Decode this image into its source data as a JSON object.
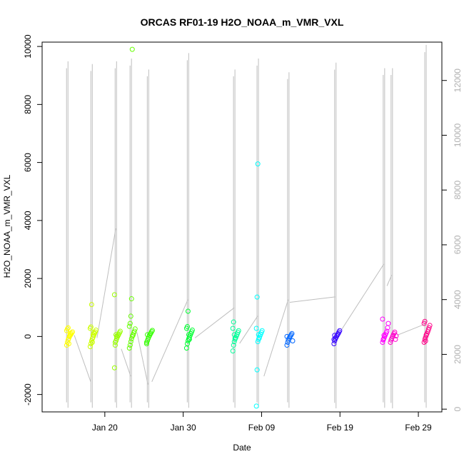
{
  "chart_data": {
    "type": "scatter",
    "title": "ORCAS RF01-19 H2O_NOAA_m_VMR_VXL",
    "xlabel": "Date",
    "ylabel": "H2O_NOAA_m_VMR_VXL",
    "x_range": [
      "2016-01-12",
      "2016-03-03"
    ],
    "ylim": [
      -2600,
      10150
    ],
    "y2lim": [
      -100,
      13400
    ],
    "x_ticks": [
      {
        "date": "2016-01-20",
        "label": "Jan 20"
      },
      {
        "date": "2016-01-30",
        "label": "Jan 30"
      },
      {
        "date": "2016-02-09",
        "label": "Feb 09"
      },
      {
        "date": "2016-02-19",
        "label": "Feb 19"
      },
      {
        "date": "2016-02-29",
        "label": "Feb 29"
      }
    ],
    "y_ticks": [
      -2000,
      0,
      2000,
      4000,
      6000,
      8000,
      10000
    ],
    "y2_ticks": [
      0,
      2000,
      4000,
      6000,
      8000,
      10000,
      12000
    ],
    "gray_series": {
      "color": "#bebebe",
      "spikes": [
        {
          "date": "2016-01-15.3",
          "hi": 12700,
          "lo": 50
        },
        {
          "date": "2016-01-18.4",
          "hi": 12600,
          "lo": 50
        },
        {
          "date": "2016-01-21.5",
          "hi": 12700,
          "lo": 50
        },
        {
          "date": "2016-01-23.4",
          "hi": 12800,
          "lo": 50
        },
        {
          "date": "2016-01-25.6",
          "hi": 12400,
          "lo": 50
        },
        {
          "date": "2016-01-30.7",
          "hi": 13000,
          "lo": 50
        },
        {
          "date": "2016-02-05.6",
          "hi": 12400,
          "lo": 50
        },
        {
          "date": "2016-02-08.6",
          "hi": 12800,
          "lo": 50
        },
        {
          "date": "2016-02-12.5",
          "hi": 12300,
          "lo": 50
        },
        {
          "date": "2016-02-18.5",
          "hi": 12650,
          "lo": 30
        },
        {
          "date": "2016-02-24.7",
          "hi": 12450,
          "lo": 50
        },
        {
          "date": "2016-02-25.7",
          "hi": 12450,
          "lo": 30
        },
        {
          "date": "2016-03-01.0",
          "hi": 13300,
          "lo": 50
        }
      ],
      "connectors": [
        [
          [
            "2016-01-16.1",
            2700
          ],
          [
            "2016-01-18.2",
            1000
          ]
        ],
        [
          [
            "2016-01-19.0",
            2600
          ],
          [
            "2016-01-21.4",
            6600
          ]
        ],
        [
          [
            "2016-01-22.1",
            2200
          ],
          [
            "2016-01-23.3",
            1200
          ]
        ],
        [
          [
            "2016-01-24.1",
            2800
          ],
          [
            "2016-01-25.5",
            900
          ]
        ],
        [
          [
            "2016-01-26.0",
            1000
          ],
          [
            "2016-01-30.6",
            4000
          ]
        ],
        [
          [
            "2016-01-31.5",
            2600
          ],
          [
            "2016-02-05.5",
            3700
          ]
        ],
        [
          [
            "2016-02-06.2",
            2400
          ],
          [
            "2016-02-08.5",
            3400
          ]
        ],
        [
          [
            "2016-02-09.3",
            1200
          ],
          [
            "2016-02-12.4",
            4000
          ]
        ],
        [
          [
            "2016-02-12.6",
            3900
          ],
          [
            "2016-02-18.4",
            4100
          ]
        ],
        [
          [
            "2016-02-19.2",
            2900
          ],
          [
            "2016-02-24.6",
            5300
          ]
        ],
        [
          [
            "2016-02-25.0",
            4500
          ],
          [
            "2016-02-25.6",
            4900
          ]
        ],
        [
          [
            "2016-02-26.3",
            2700
          ],
          [
            "2016-02-29.8",
            3100
          ]
        ]
      ]
    },
    "series": [
      {
        "date": "2016-01-15.5",
        "color": "#ffff00",
        "values": [
          -300,
          -200,
          -120,
          -60,
          0,
          40,
          80,
          120,
          160,
          200,
          260,
          300,
          -250,
          20,
          100
        ]
      },
      {
        "date": "2016-01-18.5",
        "color": "#ccff00",
        "values": [
          -350,
          -250,
          -150,
          -80,
          -20,
          40,
          100,
          160,
          220,
          280,
          330,
          1100,
          -200,
          60,
          140
        ]
      },
      {
        "date": "2016-01-21.6",
        "color": "#99ff00",
        "values": [
          -1080,
          -300,
          -150,
          -80,
          -20,
          30,
          80,
          130,
          180,
          1440,
          -200,
          60,
          10
        ]
      },
      {
        "date": "2016-01-23.5",
        "color": "#66ff00",
        "values": [
          -400,
          -300,
          -180,
          -80,
          0,
          60,
          120,
          180,
          260,
          350,
          450,
          700,
          1300,
          9900,
          40
        ]
      },
      {
        "date": "2016-01-25.7",
        "color": "#33ff00",
        "values": [
          -250,
          -150,
          -80,
          -20,
          30,
          80,
          120,
          170,
          210,
          -200,
          60
        ]
      },
      {
        "date": "2016-01-30.8",
        "color": "#00ff33",
        "values": [
          -400,
          -250,
          -150,
          -80,
          -20,
          40,
          100,
          160,
          220,
          280,
          340,
          870,
          60,
          -100
        ]
      },
      {
        "date": "2016-02-05.7",
        "color": "#00ff99",
        "values": [
          -500,
          -300,
          -180,
          -100,
          -40,
          20,
          80,
          140,
          200,
          280,
          500,
          60,
          -60
        ]
      },
      {
        "date": "2016-02-08.7",
        "color": "#00ffff",
        "values": [
          -2400,
          -1150,
          -180,
          -100,
          -40,
          20,
          80,
          140,
          200,
          280,
          1360,
          5950,
          60,
          -60
        ]
      },
      {
        "date": "2016-02-12.6",
        "color": "#0066ff",
        "values": [
          -300,
          -200,
          -120,
          -60,
          -20,
          20,
          60,
          100,
          -150,
          0
        ]
      },
      {
        "date": "2016-02-18.6",
        "color": "#3300ff",
        "values": [
          -250,
          -150,
          -80,
          -30,
          20,
          60,
          100,
          150,
          200,
          -100,
          40
        ]
      },
      {
        "date": "2016-02-24.8",
        "color": "#ff00ff",
        "values": [
          -200,
          -120,
          -60,
          0,
          60,
          120,
          180,
          300,
          450,
          600,
          -100,
          40
        ]
      },
      {
        "date": "2016-02-25.8",
        "color": "#ff00cc",
        "values": [
          -200,
          -120,
          -60,
          0,
          50,
          100,
          150,
          -100,
          20
        ]
      },
      {
        "date": "2016-03-01.1",
        "color": "#ff0088",
        "values": [
          -200,
          -100,
          -30,
          40,
          100,
          160,
          230,
          300,
          380,
          450,
          520,
          -150,
          60
        ]
      }
    ]
  }
}
